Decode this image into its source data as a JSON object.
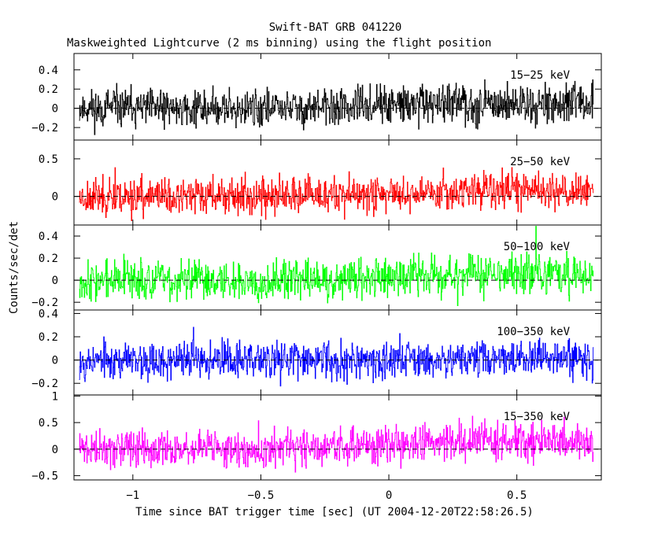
{
  "chart_data": {
    "type": "line",
    "title": "Swift-BAT GRB 041220",
    "subtitle": "Maskweighted Lightcurve (2 ms binning) using the flight position",
    "xlabel": "Time since BAT trigger time [sec] (UT 2004-12-20T22:58:26.5)",
    "ylabel": "Counts/sec/det",
    "xlim": [
      -1.23,
      0.83
    ],
    "xticks": [
      -1,
      -0.5,
      0,
      0.5
    ],
    "xtick_labels": [
      "−1",
      "−0.5",
      "0",
      "0.5"
    ],
    "bin_width_s": 0.002,
    "panels": [
      {
        "band": "15−25 keV",
        "color": "#000000",
        "ylim": [
          -0.33,
          0.57
        ],
        "yticks": [
          -0.2,
          0,
          0.2,
          0.4
        ],
        "ytick_labels": [
          "−0.2",
          "0",
          "0.2",
          "0.4"
        ],
        "noise": 0.1,
        "rise": 0.05,
        "spikes": 0.16,
        "seed": 11
      },
      {
        "band": "25−50 keV",
        "color": "#ff0000",
        "ylim": [
          -0.38,
          0.75
        ],
        "yticks": [
          0,
          0.5
        ],
        "ytick_labels": [
          "0",
          "0.5"
        ],
        "noise": 0.12,
        "rise": 0.08,
        "spikes": 0.2,
        "seed": 23
      },
      {
        "band": "50−100 keV",
        "color": "#00ff00",
        "ylim": [
          -0.27,
          0.5
        ],
        "yticks": [
          -0.2,
          0,
          0.2,
          0.4
        ],
        "ytick_labels": [
          "−0.2",
          "0",
          "0.2",
          "0.4"
        ],
        "noise": 0.09,
        "rise": 0.06,
        "spikes": 0.16,
        "seed": 37
      },
      {
        "band": "100−350 keV",
        "color": "#0000ff",
        "ylim": [
          -0.3,
          0.43
        ],
        "yticks": [
          -0.2,
          0,
          0.2,
          0.4
        ],
        "ytick_labels": [
          "−0.2",
          "0",
          "0.2",
          "0.4"
        ],
        "noise": 0.08,
        "rise": 0.02,
        "spikes": 0.14,
        "seed": 53
      },
      {
        "band": "15−350 keV",
        "color": "#ff00ff",
        "ylim": [
          -0.58,
          1.02
        ],
        "yticks": [
          -0.5,
          0,
          0.5,
          1
        ],
        "ytick_labels": [
          "−0.5",
          "0",
          "0.5",
          "1"
        ],
        "noise": 0.17,
        "rise": 0.17,
        "spikes": 0.3,
        "seed": 71
      }
    ]
  }
}
